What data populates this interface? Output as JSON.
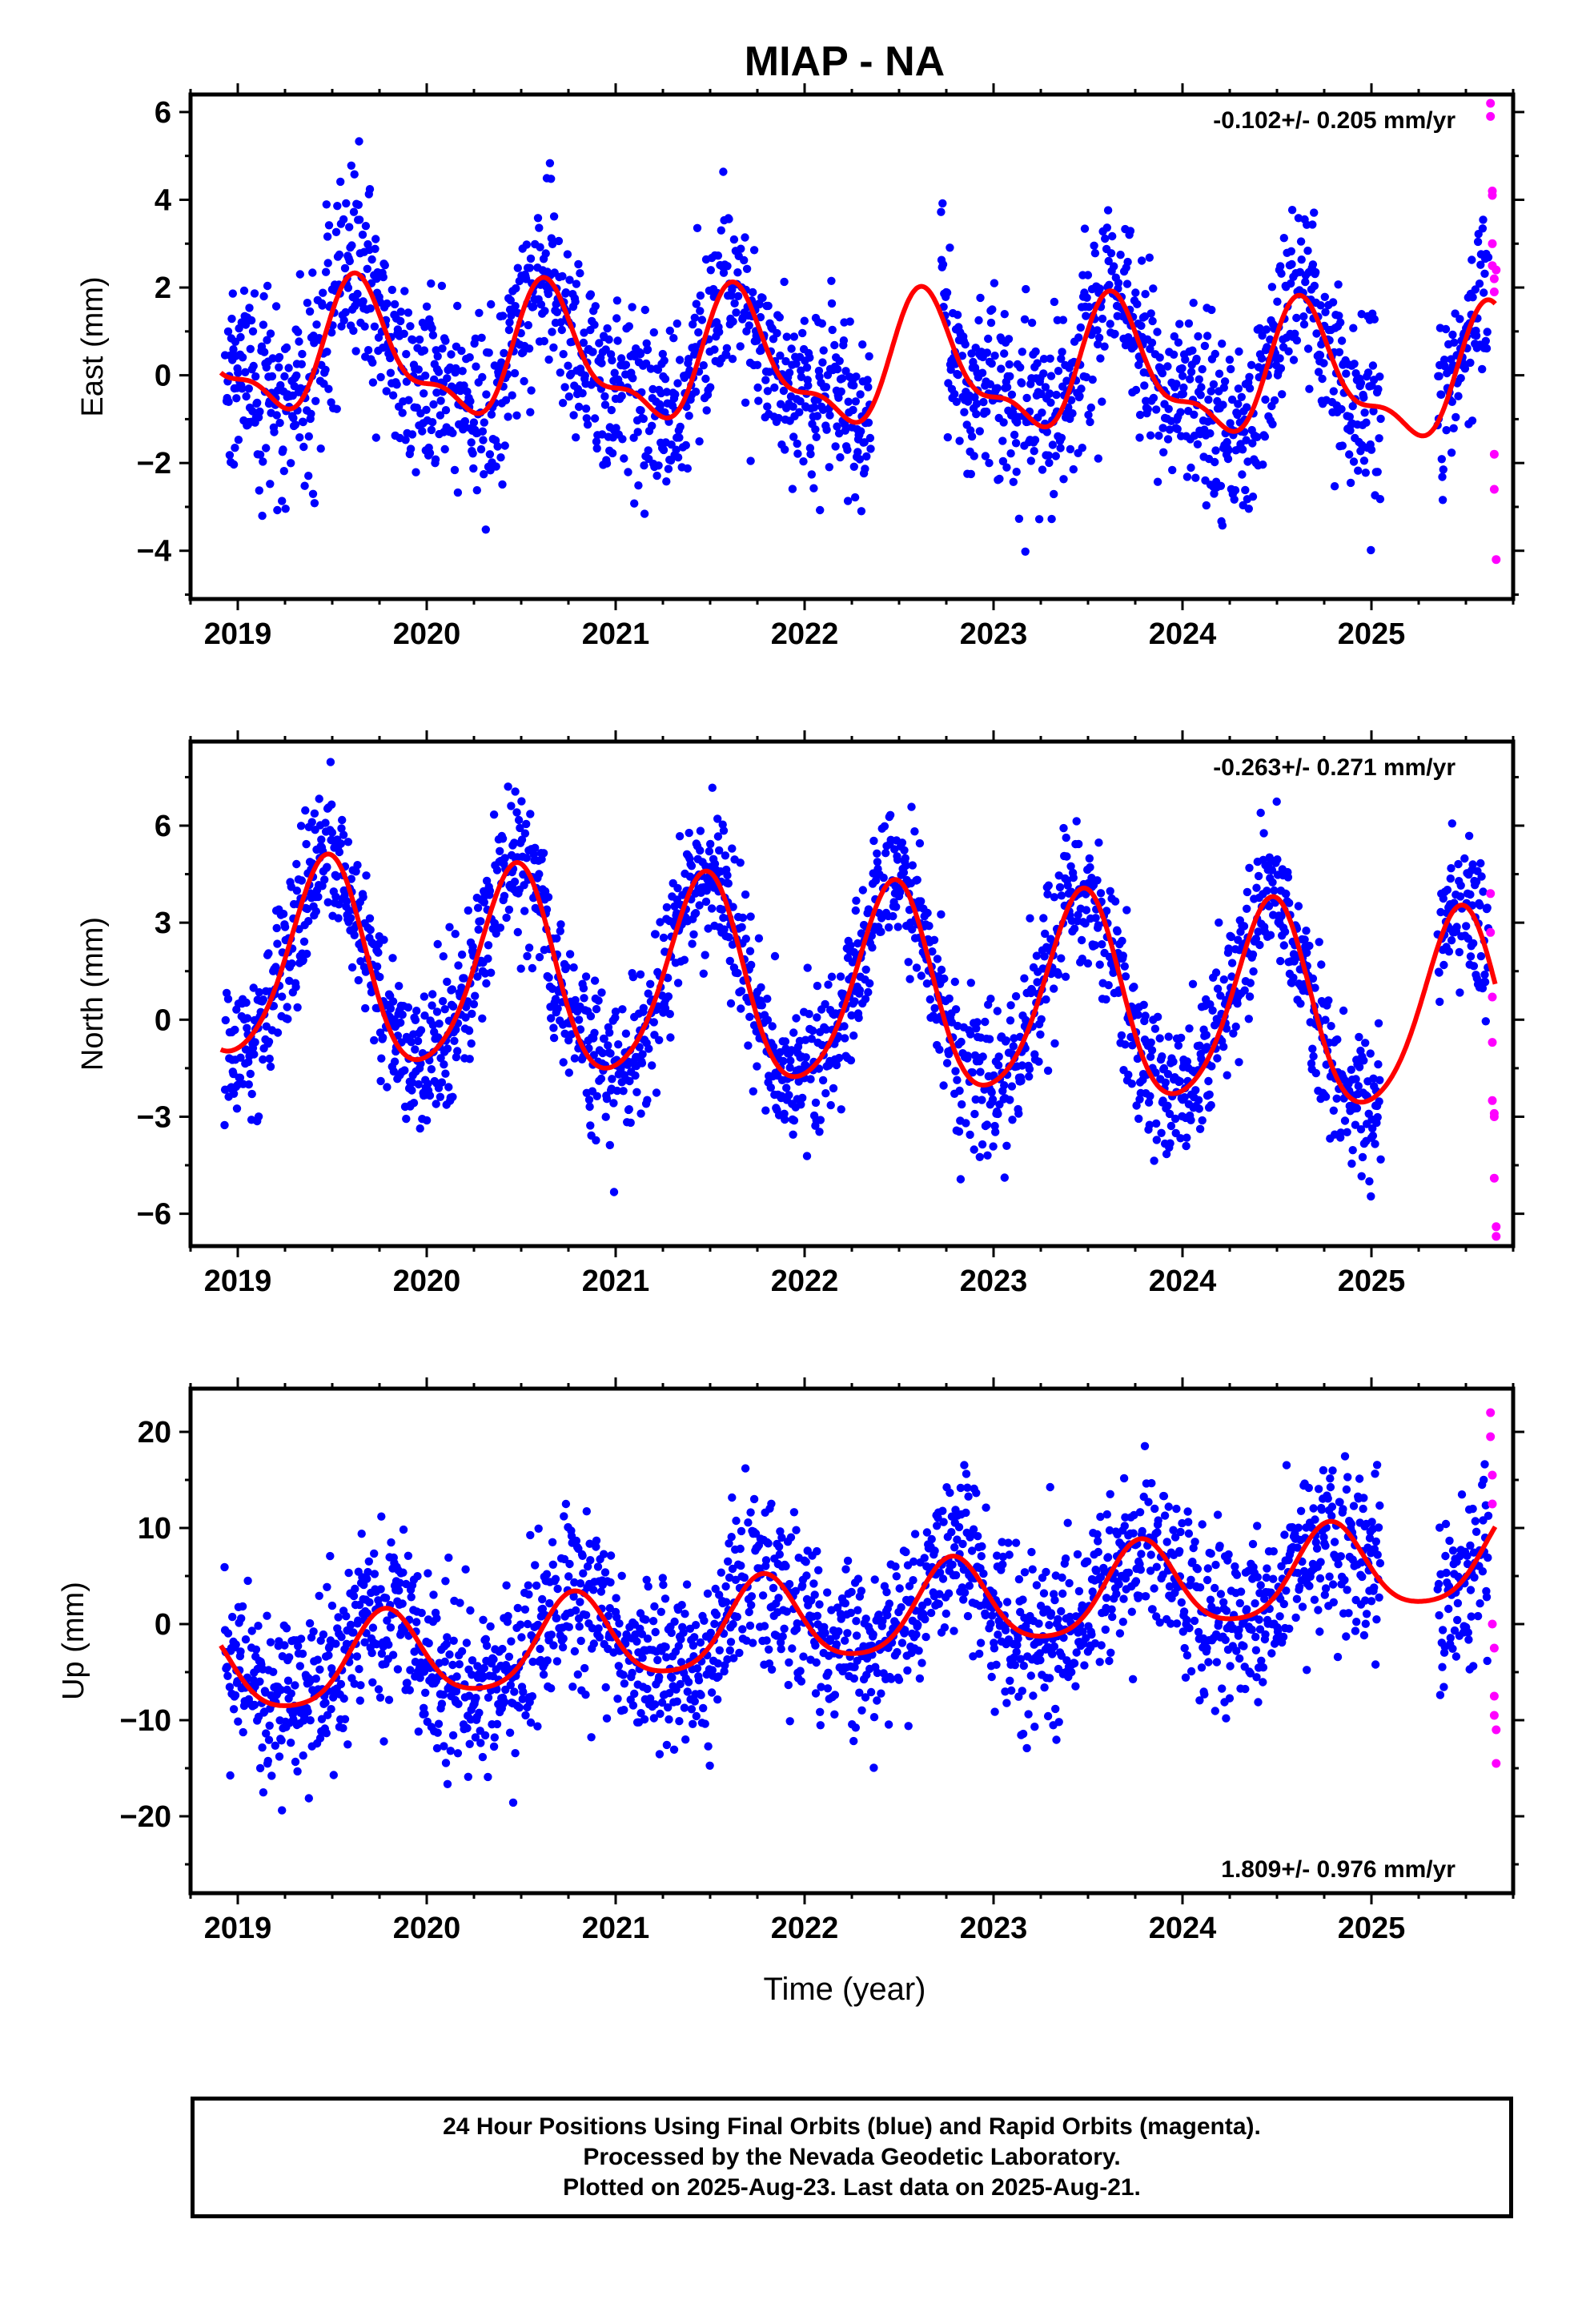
{
  "figure": {
    "title": "MIAP - NA",
    "xlabel": "Time (year)"
  },
  "colors": {
    "final_orbits": "#0000ff",
    "rapid_orbits": "#ff00ff",
    "model_fit": "#ff0000",
    "frame": "#000000"
  },
  "caption": {
    "lines": [
      "24 Hour Positions Using Final Orbits (blue) and Rapid Orbits (magenta).",
      "Processed by the Nevada Geodetic Laboratory.",
      "Plotted on 2025-Aug-23. Last data on 2025-Aug-21."
    ]
  },
  "chart_data": [
    {
      "type": "scatter",
      "component": "East",
      "ylabel": "East (mm)",
      "rate_label": "-0.102+/- 0.205 mm/yr",
      "rate_position": "top-right",
      "xlim": [
        2018.75,
        2025.75
      ],
      "ylim": [
        -5.1,
        6.4
      ],
      "x_ticks": [
        2019,
        2020,
        2021,
        2022,
        2023,
        2024,
        2025
      ],
      "y_ticks": [
        -4,
        -2,
        0,
        2,
        4,
        6
      ],
      "y_tick_labels": [
        "−4",
        "−2",
        "0",
        "2",
        "4",
        "6"
      ],
      "model": {
        "mean": 0.2,
        "rate": -0.102,
        "t0": 2022.3,
        "annual": {
          "amp": 1.35,
          "peak": 2019.65
        },
        "semiannual": {
          "amp": 0.55,
          "peak": 2019.6
        }
      },
      "final_orbits": {
        "x_start": 2018.93,
        "x_end": 2025.62,
        "noise_sd": 1.05,
        "gaps": [
          [
            2022.35,
            2022.72
          ],
          [
            2025.05,
            2025.35
          ]
        ]
      },
      "rapid_orbits": {
        "x": [
          2025.63,
          2025.63,
          2025.64,
          2025.64,
          2025.64,
          2025.64,
          2025.65,
          2025.65,
          2025.65,
          2025.65,
          2025.66,
          2025.66
        ],
        "y": [
          6.2,
          5.9,
          4.1,
          4.2,
          3.0,
          2.5,
          2.2,
          1.9,
          -1.8,
          -2.6,
          -4.2,
          2.4
        ]
      }
    },
    {
      "type": "scatter",
      "component": "North",
      "ylabel": "North (mm)",
      "rate_label": "-0.263+/- 0.271 mm/yr",
      "rate_position": "top-right",
      "xlim": [
        2018.75,
        2025.75
      ],
      "ylim": [
        -7.0,
        8.6
      ],
      "x_ticks": [
        2019,
        2020,
        2021,
        2022,
        2023,
        2024,
        2025
      ],
      "y_ticks": [
        -6,
        -3,
        0,
        3,
        6
      ],
      "y_tick_labels": [
        "−6",
        "−3",
        "0",
        "3",
        "6"
      ],
      "model": {
        "mean": 0.9,
        "rate": -0.263,
        "t0": 2022.3,
        "annual": {
          "amp": 3.1,
          "peak": 2019.47
        },
        "semiannual": {
          "amp": 0.4,
          "peak": 2019.5
        }
      },
      "final_orbits": {
        "x_start": 2018.93,
        "x_end": 2025.62,
        "noise_sd": 1.15,
        "gaps": [
          [
            2025.05,
            2025.35
          ]
        ]
      },
      "rapid_orbits": {
        "x": [
          2025.63,
          2025.63,
          2025.64,
          2025.64,
          2025.64,
          2025.65,
          2025.65,
          2025.65,
          2025.66,
          2025.66
        ],
        "y": [
          3.9,
          2.7,
          0.7,
          -0.7,
          -2.5,
          -2.9,
          -3.0,
          -4.9,
          -6.4,
          -6.7
        ]
      }
    },
    {
      "type": "scatter",
      "component": "Up",
      "ylabel": "Up (mm)",
      "rate_label": "1.809+/- 0.976 mm/yr",
      "rate_position": "bottom-right",
      "xlim": [
        2018.75,
        2025.75
      ],
      "ylim": [
        -28.0,
        24.5
      ],
      "x_ticks": [
        2019,
        2020,
        2021,
        2022,
        2023,
        2024,
        2025
      ],
      "y_ticks": [
        -20,
        -10,
        0,
        10,
        20
      ],
      "y_tick_labels": [
        "−20",
        "−10",
        "0",
        "10",
        "20"
      ],
      "model": {
        "mean": 0.8,
        "rate": 1.809,
        "t0": 2022.3,
        "annual": {
          "amp": 4.6,
          "peak": 2019.78
        },
        "semiannual": {
          "amp": 0.8,
          "peak": 2019.78
        }
      },
      "final_orbits": {
        "x_start": 2018.93,
        "x_end": 2025.62,
        "noise_sd": 4.4,
        "gaps": [
          [
            2025.05,
            2025.35
          ]
        ]
      },
      "rapid_orbits": {
        "x": [
          2025.63,
          2025.63,
          2025.64,
          2025.64,
          2025.64,
          2025.65,
          2025.65,
          2025.65,
          2025.66,
          2025.66
        ],
        "y": [
          22.0,
          19.5,
          15.5,
          12.5,
          0.0,
          -2.5,
          -7.5,
          -9.5,
          -11.0,
          -14.5
        ]
      }
    }
  ]
}
